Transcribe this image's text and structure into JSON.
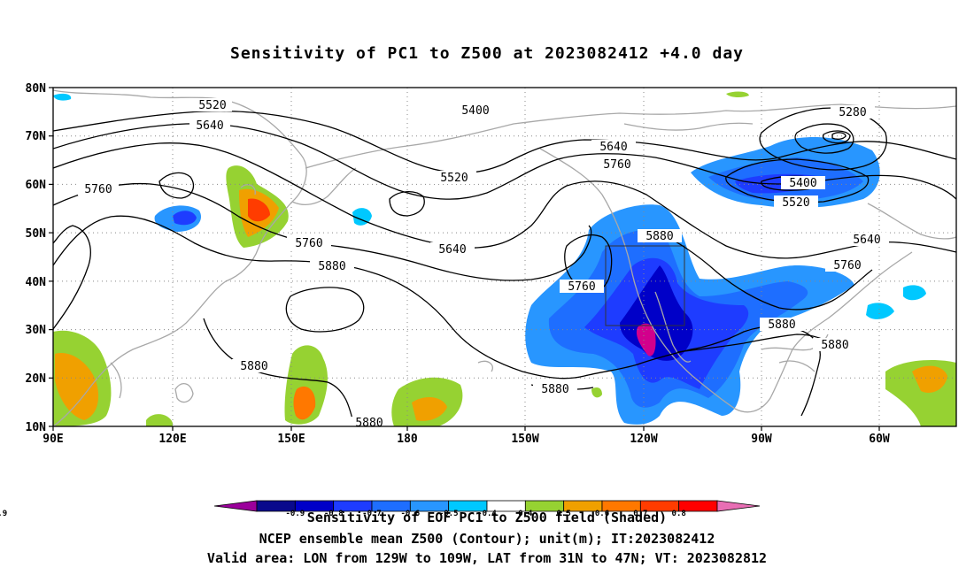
{
  "title": "Sensitivity of PC1 to Z500 at 2023082412 +4.0 day",
  "lat_labels": [
    "80N",
    "70N",
    "60N",
    "50N",
    "40N",
    "30N",
    "20N",
    "10N"
  ],
  "lon_labels": [
    "90E",
    "120E",
    "150E",
    "180",
    "150W",
    "120W",
    "90W",
    "60W"
  ],
  "contour_labels": [
    "5520",
    "5640",
    "5760",
    "5400",
    "5520",
    "5280",
    "5640",
    "5760",
    "5400",
    "5520",
    "5760",
    "5640",
    "5880",
    "5880",
    "5640",
    "5760",
    "5760",
    "5880",
    "5880",
    "5880",
    "5880",
    "5880"
  ],
  "colorbar": {
    "labels": [
      "-0.9",
      "-0.8",
      "-0.7",
      "-0.6",
      "-0.5",
      "-0.4",
      "0.4",
      "0.5",
      "0.6",
      "0.7",
      "0.8",
      "0.9"
    ],
    "colors": [
      "#9b009b",
      "#0a0a8c",
      "#0000c8",
      "#1e3cff",
      "#1e6eff",
      "#2896ff",
      "#00c8ff",
      "#ffffff",
      "#96d232",
      "#f0a000",
      "#ff7800",
      "#ff3c00",
      "#ff0000",
      "#e86eb4"
    ]
  },
  "footer": {
    "line1": "Sensitivity of EOF PC1 to Z500 field (Shaded)",
    "line2": "NCEP ensemble mean Z500 (Contour); unit(m); IT:2023082412",
    "line3": "Valid area: LON from 129W to 109W, LAT from 31N to 47N; VT: 2023082812"
  }
}
